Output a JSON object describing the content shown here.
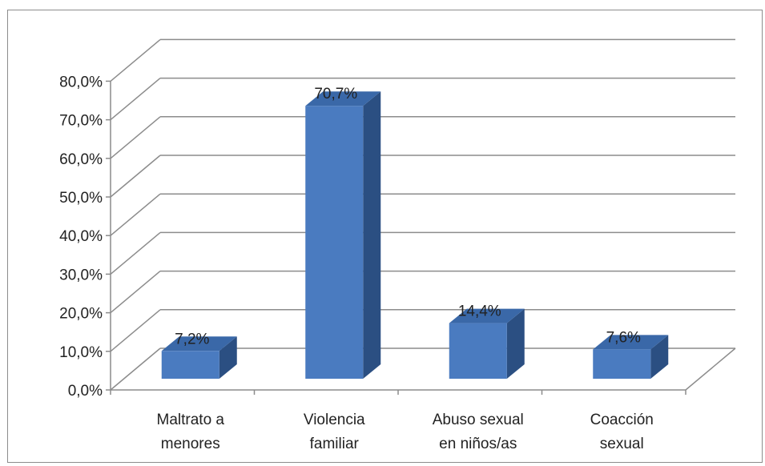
{
  "chart_data": {
    "type": "bar",
    "style": "3d-column",
    "categories": [
      [
        "Maltrato a",
        "menores"
      ],
      [
        "Violencia",
        "familiar"
      ],
      [
        "Abuso sexual",
        "en niños/as"
      ],
      [
        "Coacción",
        "sexual"
      ]
    ],
    "values": [
      7.2,
      70.7,
      14.4,
      7.6
    ],
    "data_labels": [
      "7,2%",
      "70,7%",
      "14,4%",
      "7,6%"
    ],
    "y_ticks": [
      "0,0%",
      "10,0%",
      "20,0%",
      "30,0%",
      "40,0%",
      "50,0%",
      "60,0%",
      "70,0%",
      "80,0%"
    ],
    "ylim": [
      0,
      80
    ],
    "grid": true,
    "legend": "none",
    "title": "",
    "xlabel": "",
    "ylabel": "",
    "colors": {
      "bar_front": "#4a7bc0",
      "bar_side": "#2b4f82",
      "bar_top": "#3a68a8",
      "grid": "#8c8c8c",
      "axis": "#8c8c8c"
    }
  }
}
